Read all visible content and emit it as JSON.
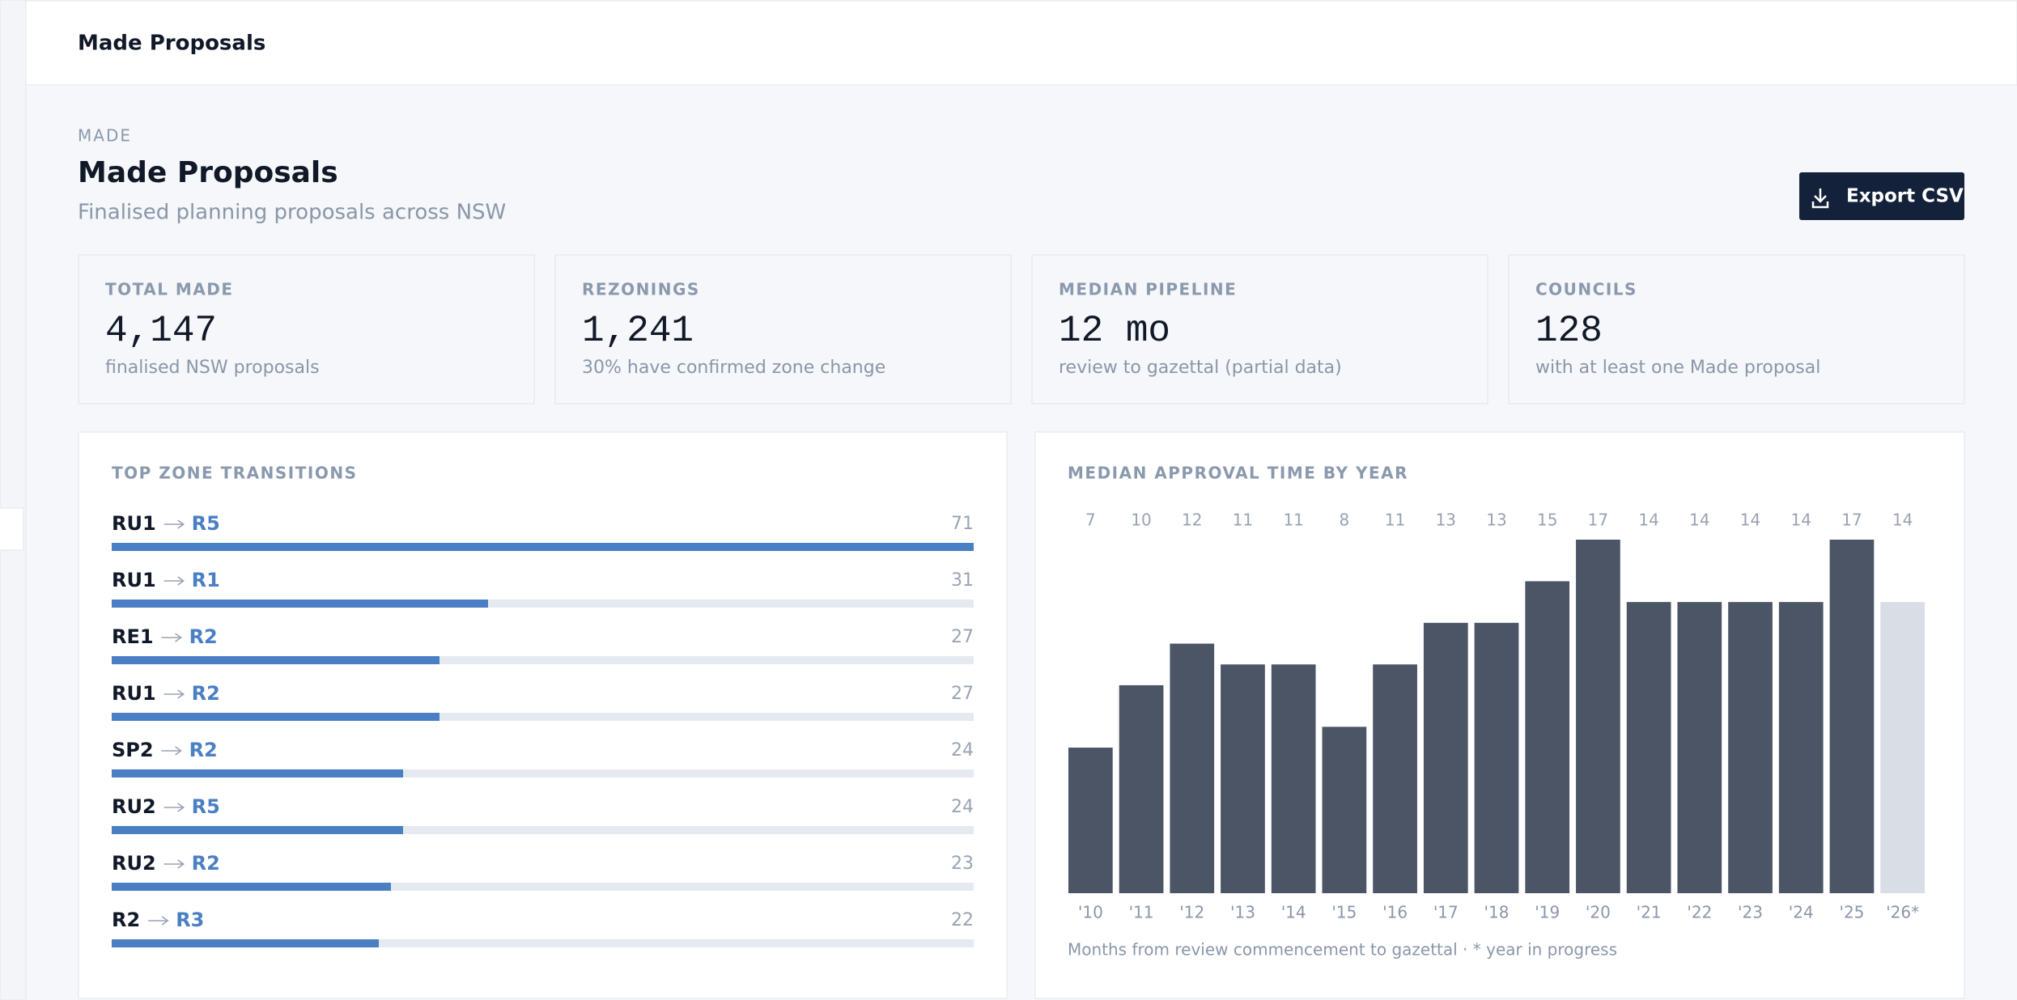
{
  "header": {
    "title": "Made Proposals"
  },
  "page": {
    "eyebrow": "MADE",
    "title": "Made Proposals",
    "subtitle": "Finalised planning proposals across NSW",
    "export_button": "Export CSV"
  },
  "stats": [
    {
      "label": "TOTAL MADE",
      "value": "4,147",
      "note": "finalised NSW proposals"
    },
    {
      "label": "REZONINGS",
      "value": "1,241",
      "note": "30% have confirmed zone change"
    },
    {
      "label": "MEDIAN PIPELINE",
      "value": "12 mo",
      "note": "review to gazettal (partial data)"
    },
    {
      "label": "COUNCILS",
      "value": "128",
      "note": "with at least one Made proposal"
    }
  ],
  "zone_transitions": {
    "title": "TOP ZONE TRANSITIONS",
    "color": "#4a7fc4",
    "track_color": "#e5e9f0",
    "rows": [
      {
        "from": "RU1",
        "to": "R5",
        "count": 71
      },
      {
        "from": "RU1",
        "to": "R1",
        "count": 31
      },
      {
        "from": "RE1",
        "to": "R2",
        "count": 27
      },
      {
        "from": "RU1",
        "to": "R2",
        "count": 27
      },
      {
        "from": "SP2",
        "to": "R2",
        "count": 24
      },
      {
        "from": "RU2",
        "to": "R5",
        "count": 24
      },
      {
        "from": "RU2",
        "to": "R2",
        "count": 23
      },
      {
        "from": "R2",
        "to": "R3",
        "count": 22
      }
    ]
  },
  "chart_data": {
    "type": "bar",
    "title": "MEDIAN APPROVAL TIME BY YEAR",
    "categories": [
      "'10",
      "'11",
      "'12",
      "'13",
      "'14",
      "'15",
      "'16",
      "'17",
      "'18",
      "'19",
      "'20",
      "'21",
      "'22",
      "'23",
      "'24",
      "'25",
      "'26*"
    ],
    "values": [
      7,
      10,
      12,
      11,
      11,
      8,
      11,
      13,
      13,
      15,
      17,
      14,
      14,
      14,
      14,
      17,
      14
    ],
    "colors": [
      "#4b5565",
      "#4b5565",
      "#4b5565",
      "#4b5565",
      "#4b5565",
      "#4b5565",
      "#4b5565",
      "#4b5565",
      "#4b5565",
      "#4b5565",
      "#4b5565",
      "#4b5565",
      "#4b5565",
      "#4b5565",
      "#4b5565",
      "#4b5565",
      "#d8dde6"
    ],
    "note": "Months from review commencement to gazettal · * year in progress"
  }
}
